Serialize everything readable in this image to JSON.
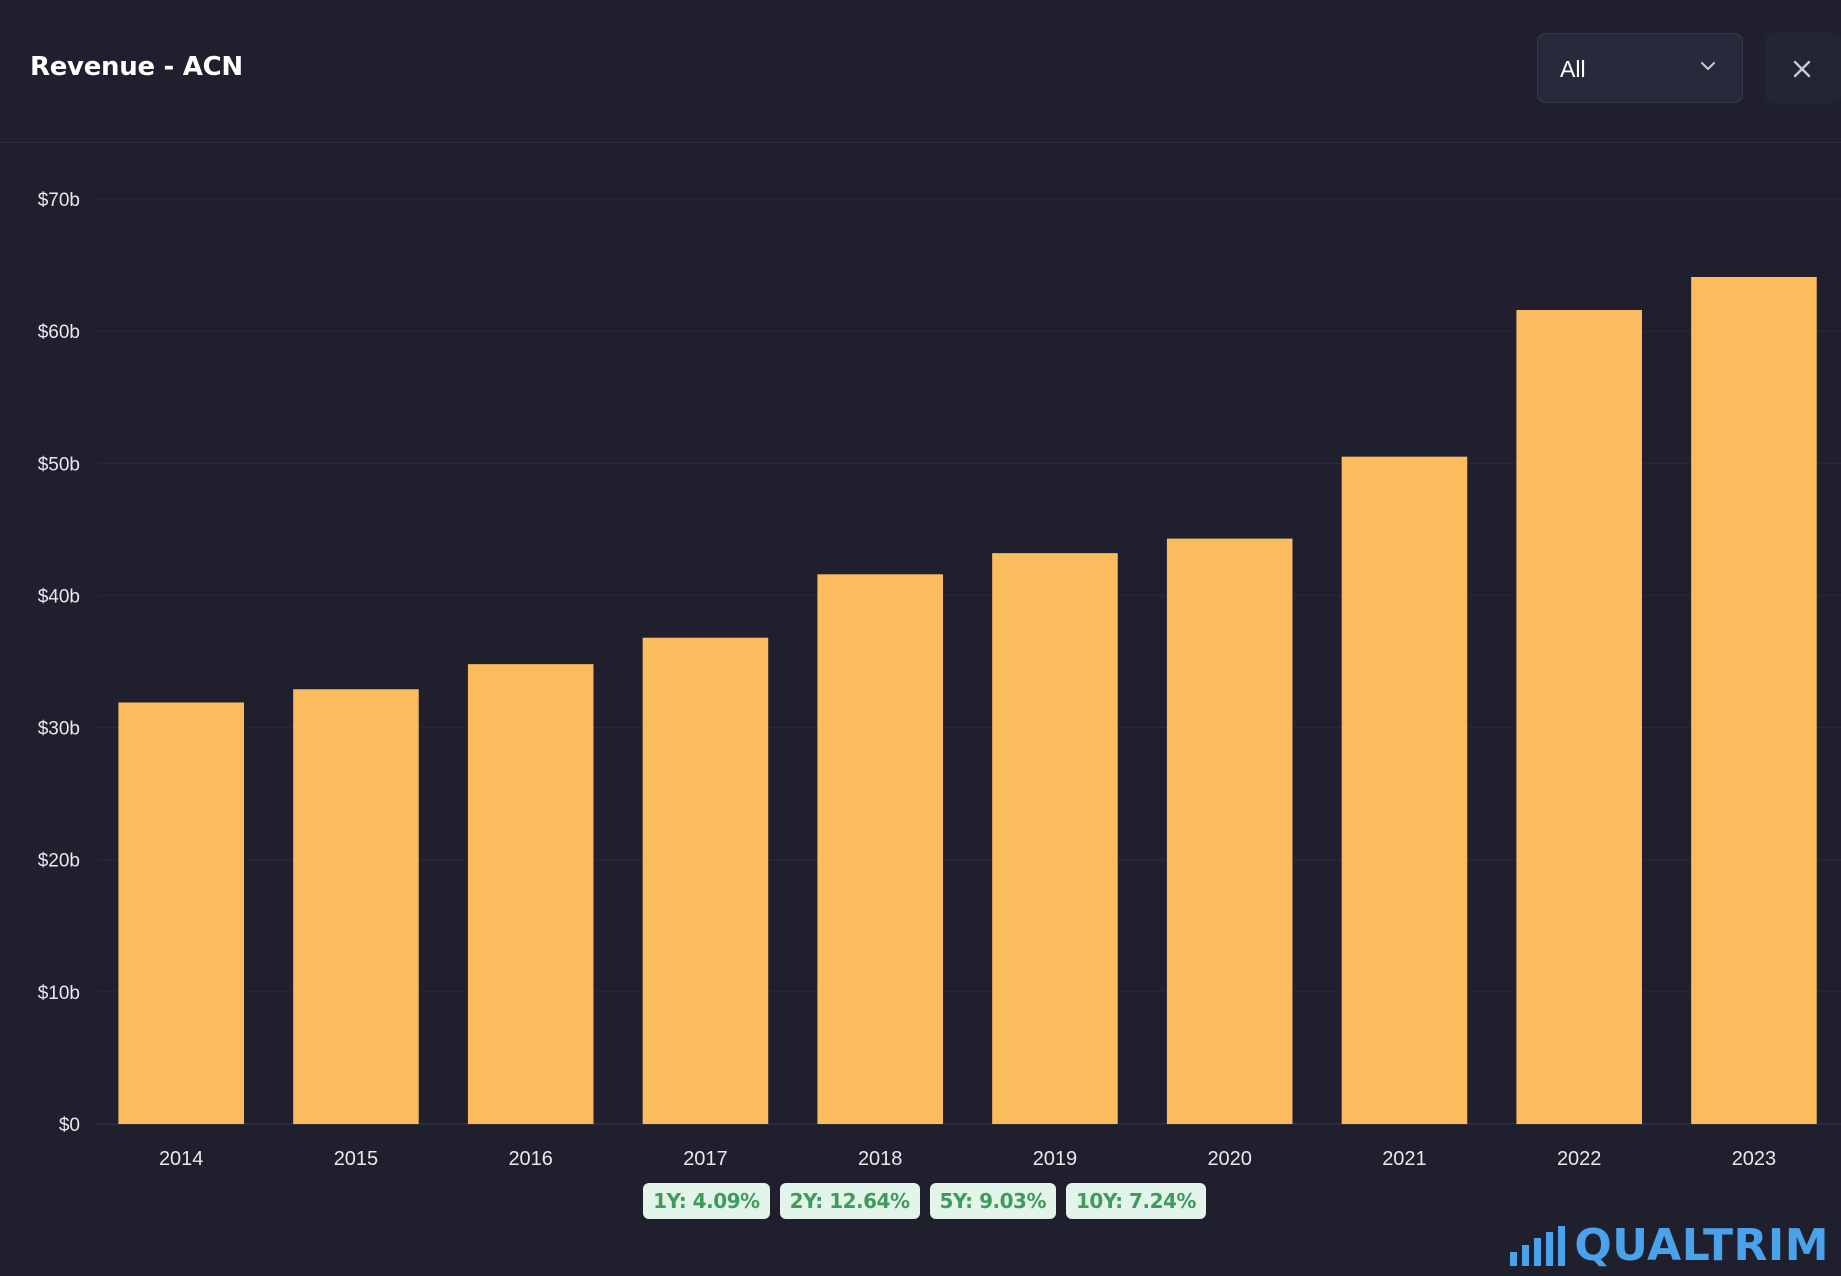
{
  "header": {
    "title": "Revenue - ACN",
    "range_value": "All"
  },
  "chart_data": {
    "type": "bar",
    "categories": [
      "2014",
      "2015",
      "2016",
      "2017",
      "2018",
      "2019",
      "2020",
      "2021",
      "2022",
      "2023"
    ],
    "values": [
      31.9,
      32.9,
      34.8,
      36.8,
      41.6,
      43.2,
      44.3,
      50.5,
      61.6,
      64.1
    ],
    "yticks": [
      "$0",
      "$10b",
      "$20b",
      "$30b",
      "$40b",
      "$50b",
      "$60b",
      "$70b"
    ],
    "ylim": [
      0,
      70
    ],
    "unit": "$b",
    "bar_color": "#fbbc5e",
    "grid": true,
    "legend": "none"
  },
  "growth_badges": [
    "1Y: 4.09%",
    "2Y: 12.64%",
    "5Y: 9.03%",
    "10Y: 7.24%"
  ],
  "logo": {
    "text": "QUALTRIM",
    "color": "#4aa3ea"
  }
}
